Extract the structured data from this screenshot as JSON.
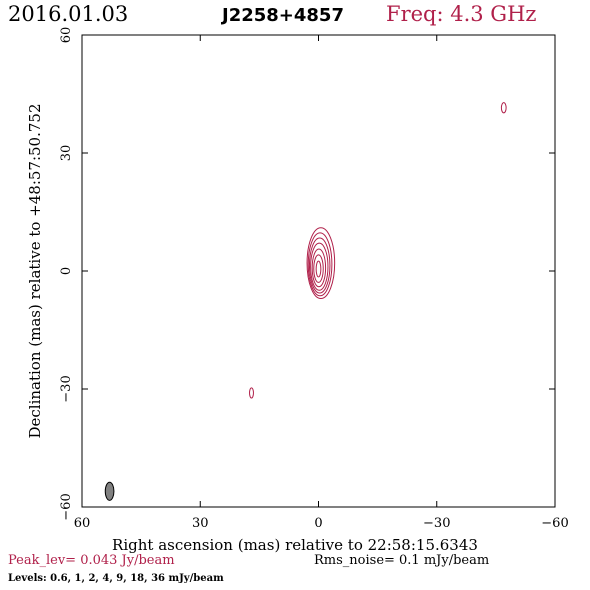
{
  "header": {
    "date": "2016.01.03",
    "source": "J2258+4857",
    "freq": "Freq: 4.3 GHz"
  },
  "footer": {
    "peak_lev": "Peak_lev=  0.043 Jy/beam",
    "rms_noise": "Rms_noise=  0.1 mJy/beam",
    "levels": "Levels: 0.6,    1,    2,    4,    9,   18,   36 mJy/beam"
  },
  "colors": {
    "accent": "#b0204a",
    "axis": "#000000",
    "beam_fill": "#808080"
  },
  "chart_data": {
    "type": "contour",
    "title": "J2258+4857",
    "xlabel": "Right ascension (mas) relative to 22:58:15.6343",
    "ylabel": "Declination (mas) relative to +48:57:50.752",
    "xlim": [
      60,
      -60
    ],
    "ylim": [
      -60,
      60
    ],
    "x_ticks": [
      60,
      30,
      0,
      -30,
      -60
    ],
    "y_ticks": [
      60,
      30,
      0,
      -30,
      -60
    ],
    "x_tick_labels": [
      "60",
      "30",
      "0",
      "−30",
      "−60"
    ],
    "y_tick_labels": [
      "60",
      "30",
      "0",
      "−30",
      "−60"
    ],
    "levels_mJy": [
      0.6,
      1,
      2,
      4,
      9,
      18,
      36
    ],
    "peak_Jy_per_beam": 0.043,
    "rms_mJy_per_beam": 0.1,
    "components": [
      {
        "name": "core",
        "x": 0,
        "y": 0.5,
        "contours": [
          {
            "level": 0.6,
            "dx": -0.6,
            "dy": 1.5,
            "rx": 3.5,
            "ry": 9.0
          },
          {
            "level": 1,
            "dx": -0.4,
            "dy": 1.2,
            "rx": 3.0,
            "ry": 8.0
          },
          {
            "level": 2,
            "dx": -0.3,
            "dy": 0.9,
            "rx": 2.6,
            "ry": 7.0
          },
          {
            "level": 4,
            "dx": -0.2,
            "dy": 0.6,
            "rx": 2.2,
            "ry": 6.0
          },
          {
            "level": 9,
            "dx": -0.1,
            "dy": 0.3,
            "rx": 1.7,
            "ry": 4.8
          },
          {
            "level": 18,
            "dx": 0.0,
            "dy": 0.1,
            "rx": 1.2,
            "ry": 3.5
          },
          {
            "level": 36,
            "dx": 0.0,
            "dy": 0.0,
            "rx": 0.6,
            "ry": 2.0
          }
        ]
      },
      {
        "name": "spot-ne",
        "x": 17.0,
        "y": -31.0,
        "rx": 0.5,
        "ry": 1.3
      },
      {
        "name": "spot-sw",
        "x": -47.0,
        "y": 41.5,
        "rx": 0.6,
        "ry": 1.3
      }
    ],
    "beam": {
      "x": 53.0,
      "y": -56.0,
      "rx": 1.1,
      "ry": 2.3
    }
  }
}
